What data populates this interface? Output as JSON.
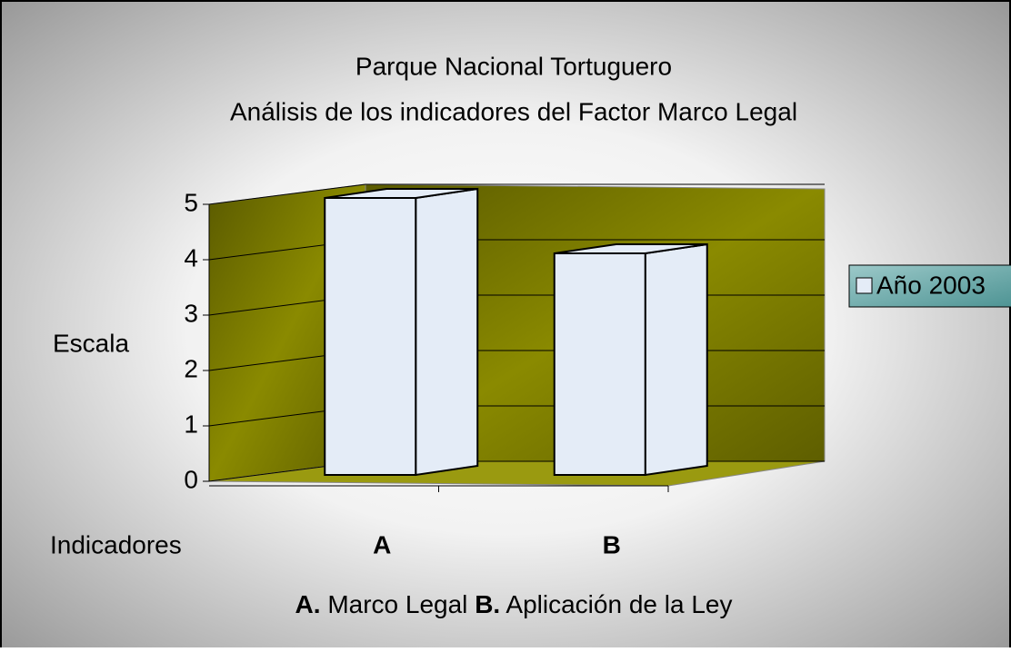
{
  "chart_data": {
    "type": "bar3d",
    "title": [
      "Parque Nacional Tortuguero",
      "Análisis de los indicadores del Factor  Marco Legal"
    ],
    "y_label": "Escala",
    "x_label": "Indicadores",
    "categories": [
      "A",
      "B"
    ],
    "series": [
      {
        "name": "Año 2003",
        "color": "#e4ecf7",
        "values": [
          5,
          4
        ]
      }
    ],
    "ylim": [
      0,
      5
    ],
    "yticks": [
      0,
      1,
      2,
      3,
      4,
      5
    ],
    "grid": true,
    "legend": "right",
    "footnote": [
      {
        "key": "A.",
        "text": "Marco Legal"
      },
      {
        "key": "B.",
        "text": "Aplicación de la Ley"
      }
    ]
  }
}
